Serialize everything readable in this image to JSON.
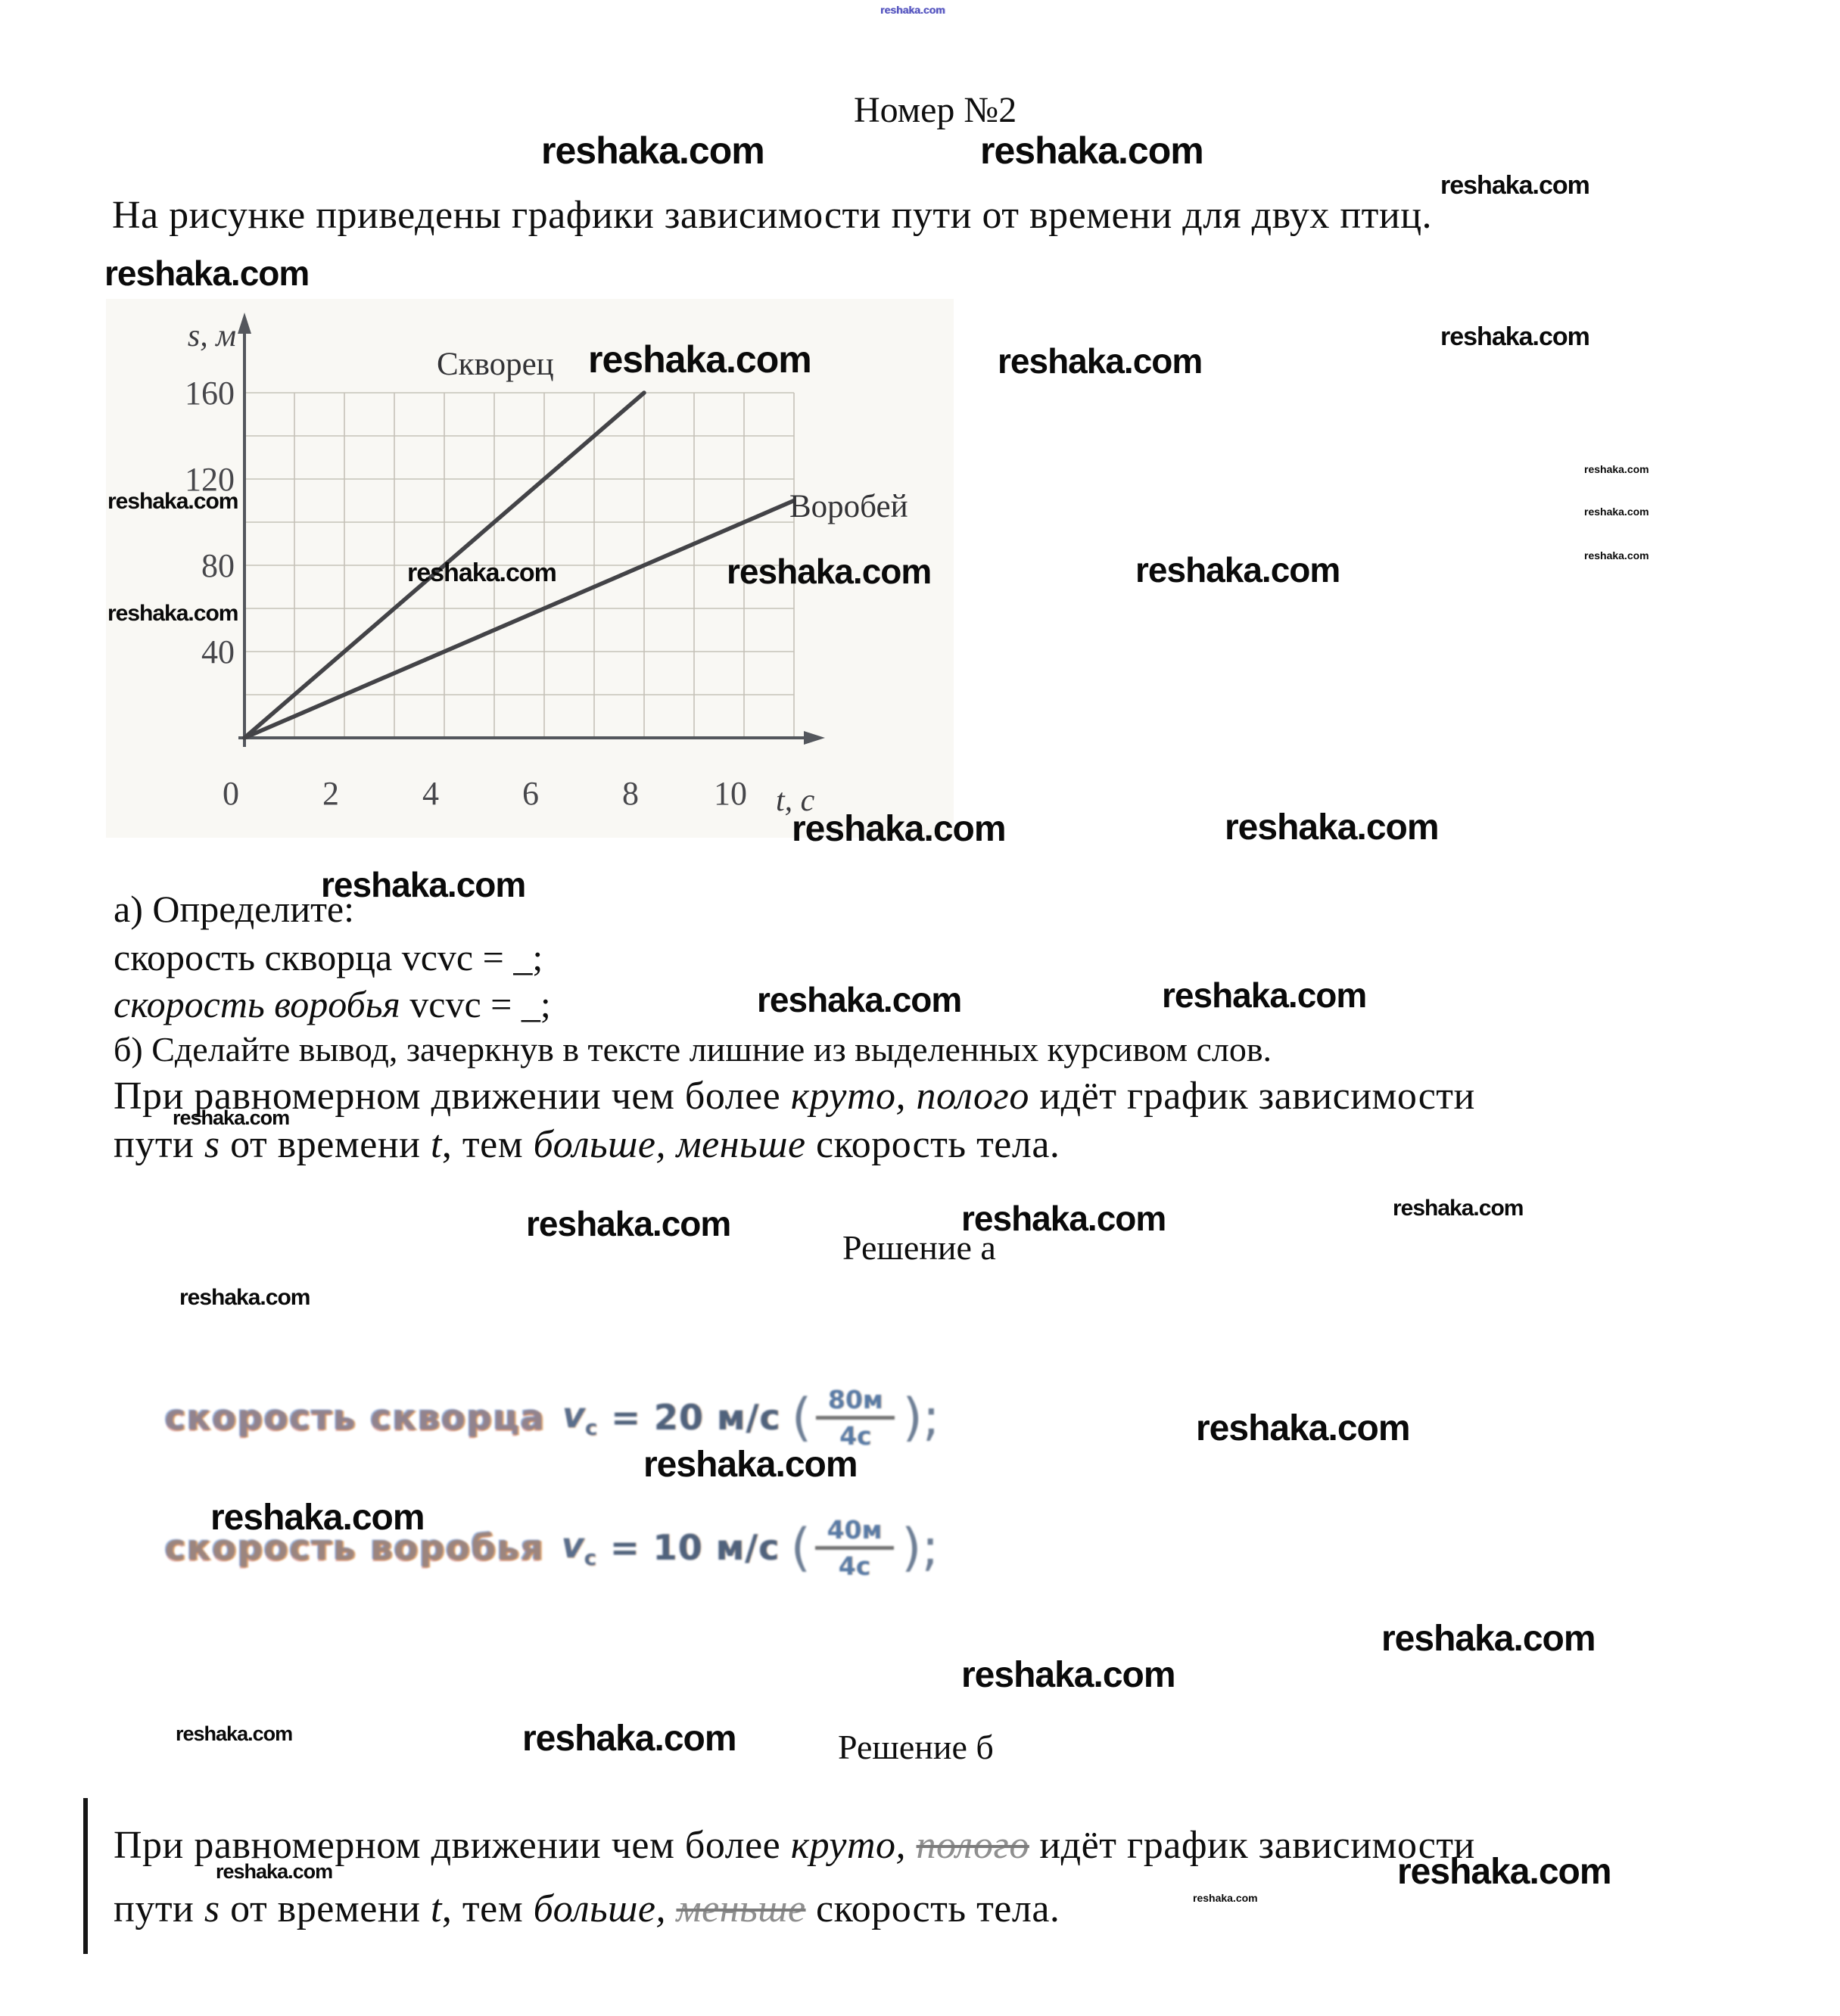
{
  "watermark": {
    "text": "reshaka.com"
  },
  "title": "Номер №2",
  "intro": "На рисунке приведены графики зависимости пути от времени для двух птиц.",
  "chart_data": {
    "type": "line",
    "title": "",
    "xlabel": "t, c",
    "ylabel": "s, м",
    "xlim": [
      0,
      11
    ],
    "ylim": [
      0,
      180
    ],
    "grid": true,
    "x_ticks": [
      0,
      2,
      4,
      6,
      8,
      10
    ],
    "y_ticks": [
      40,
      80,
      120,
      160
    ],
    "series": [
      {
        "name": "Скворец",
        "x": [
          0,
          8
        ],
        "y": [
          0,
          160
        ],
        "speed": "20 м/с"
      },
      {
        "name": "Воробей",
        "x": [
          0,
          11
        ],
        "y": [
          0,
          110
        ],
        "speed": "10 м/с"
      }
    ],
    "legend_position": "inline-labels"
  },
  "task_a": {
    "heading": "а) Определите:",
    "line1_parts": [
      {
        "t": "скорость скворца vcvc = _;"
      }
    ],
    "line2_parts": [
      {
        "t": "скорость воробья",
        "s": "it"
      },
      {
        "t": " vcvc = _;"
      }
    ]
  },
  "task_b": {
    "heading": "б) Сделайте вывод, зачеркнув в тексте лишние из выделенных курсивом слов.",
    "line1_parts": [
      {
        "t": "При равномерном движении чем более "
      },
      {
        "t": "круто, полого",
        "s": "it"
      },
      {
        "t": " идёт график зависимости"
      }
    ],
    "line2_parts": [
      {
        "t": "пути "
      },
      {
        "t": "s",
        "s": "it"
      },
      {
        "t": " от времени "
      },
      {
        "t": "t",
        "s": "it"
      },
      {
        "t": ", тем "
      },
      {
        "t": "больше, меньше",
        "s": "it"
      },
      {
        "t": " скорость тела."
      }
    ]
  },
  "solution_a": {
    "heading": "Решение а",
    "f1": {
      "label": "скорость скворца",
      "var": "v",
      "sub": "c",
      "eq": "= 20 м/с",
      "open": "(",
      "num": "80м",
      "den": "4с",
      "close": ");"
    },
    "f2": {
      "label": "скорость воробья",
      "var": "v",
      "sub": "c",
      "eq": "= 10 м/с",
      "open": "(",
      "num": "40м",
      "den": "4с",
      "close": ");"
    }
  },
  "solution_b": {
    "heading": "Решение б",
    "line1_parts": [
      {
        "t": "При равномерном движении чем более "
      },
      {
        "t": "круто,",
        "s": "it"
      },
      {
        "t": " "
      },
      {
        "t": "полого",
        "s": "strike"
      },
      {
        "t": " идёт график зависимости"
      }
    ],
    "line2_parts": [
      {
        "t": "пути "
      },
      {
        "t": "s",
        "s": "it"
      },
      {
        "t": " от времени "
      },
      {
        "t": "t",
        "s": "it"
      },
      {
        "t": ", тем "
      },
      {
        "t": "больше,",
        "s": "it"
      },
      {
        "t": " "
      },
      {
        "t": "меньше",
        "s": "strike"
      },
      {
        "t": " скорость тела."
      }
    ]
  }
}
